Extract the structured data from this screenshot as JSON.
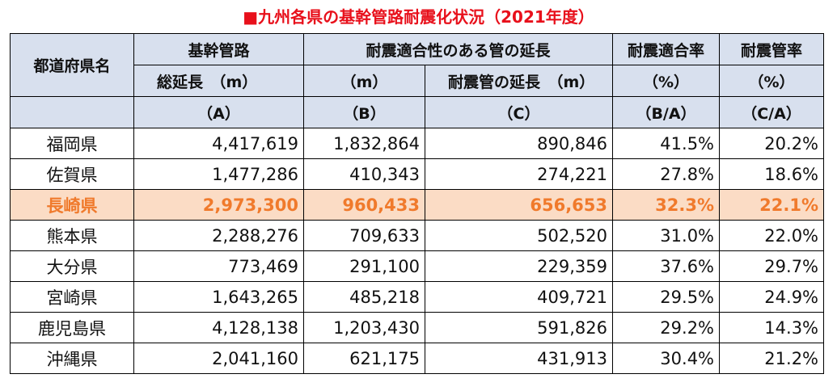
{
  "title": "■九州各県の基幹管路耐震化状況（2021年度）",
  "colors": {
    "title": "#e8101b",
    "header_bg": "#d8e0ee",
    "highlight_bg": "#fbdcc5",
    "highlight_text": "#f07a2c"
  },
  "header": {
    "prefecture": "都道府県名",
    "group_trunk": "基幹管路",
    "group_seismic": "耐震適合性のある管の延長",
    "seismic_fit_rate": "耐震適合率",
    "seismic_pipe_rate": "耐震管率",
    "total_length": "総延長　（m）",
    "b_unit": "（m）",
    "c_label": "耐震管の延長　（m）",
    "pct1": "（%）",
    "pct2": "（%）",
    "a": "（A）",
    "b": "（B）",
    "c": "（C）",
    "ba": "（B/A）",
    "ca": "（C/A）"
  },
  "rows": [
    {
      "pref": "福岡県",
      "a": "4,417,619",
      "b": "1,832,864",
      "c": "890,846",
      "ba": "41.5%",
      "ca": "20.2%"
    },
    {
      "pref": "佐賀県",
      "a": "1,477,286",
      "b": "410,343",
      "c": "274,221",
      "ba": "27.8%",
      "ca": "18.6%"
    },
    {
      "pref": "長崎県",
      "a": "2,973,300",
      "b": "960,433",
      "c": "656,653",
      "ba": "32.3%",
      "ca": "22.1%"
    },
    {
      "pref": "熊本県",
      "a": "2,288,276",
      "b": "709,633",
      "c": "502,520",
      "ba": "31.0%",
      "ca": "22.0%"
    },
    {
      "pref": "大分県",
      "a": "773,469",
      "b": "291,100",
      "c": "229,359",
      "ba": "37.6%",
      "ca": "29.7%"
    },
    {
      "pref": "宮崎県",
      "a": "1,643,265",
      "b": "485,218",
      "c": "409,721",
      "ba": "29.5%",
      "ca": "24.9%"
    },
    {
      "pref": "鹿児島県",
      "a": "4,128,138",
      "b": "1,203,430",
      "c": "591,826",
      "ba": "29.2%",
      "ca": "14.3%"
    },
    {
      "pref": "沖縄県",
      "a": "2,041,160",
      "b": "621,175",
      "c": "431,913",
      "ba": "30.4%",
      "ca": "21.2%"
    }
  ]
}
